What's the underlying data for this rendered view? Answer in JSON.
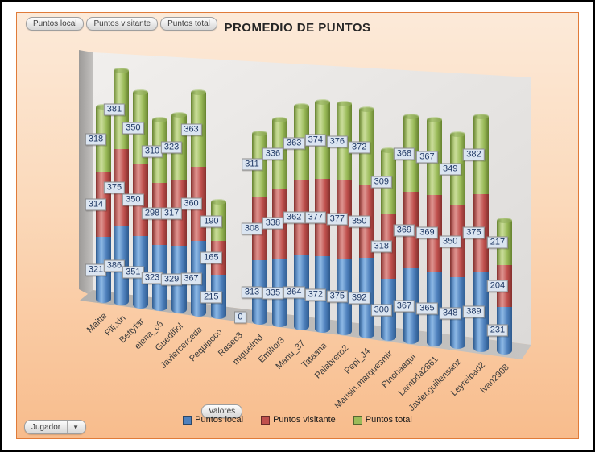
{
  "title": "PROMEDIO DE PUNTOS",
  "field_buttons": {
    "local": "Puntos local",
    "visitante": "Puntos visitante",
    "total": "Puntos total"
  },
  "values_button": "Valores",
  "category_button": {
    "label": "Jugador",
    "arrow": "▼"
  },
  "legend": {
    "items": [
      {
        "label": "Puntos local",
        "color": "#4f81bd"
      },
      {
        "label": "Puntos visitante",
        "color": "#c0504d"
      },
      {
        "label": "Puntos total",
        "color": "#9bbb59"
      }
    ]
  },
  "colors": {
    "panel_border": "#e07b39",
    "background_top": "#fcead9",
    "background_bottom": "#f8bc8c",
    "label_box": "#dbe5f1",
    "label_text": "#1f3864"
  },
  "chart_data": {
    "type": "bar",
    "subtype": "3d-stacked-cylinder",
    "title": "PROMEDIO DE PUNTOS",
    "categories": [
      "Maitte",
      "Fili.xin",
      "Bettyfar",
      "elena_c6",
      "Guedifiol",
      "Javiercerceda",
      "Pequipoco",
      "Rasec3",
      "miguelmd",
      "Emilíor3",
      "Manu_37",
      "Tataana",
      "Palabrero2",
      "Pepi_J4",
      "Marisin.marquesmir",
      "Pinchaaqui",
      "Lambda2861",
      "Javier.guillensanz",
      "Leyreipad2",
      "Ivan2908"
    ],
    "series": [
      {
        "name": "Puntos local",
        "color": "#4f81bd",
        "values": [
          321,
          386,
          351,
          323,
          329,
          367,
          215,
          0,
          313,
          335,
          364,
          372,
          375,
          392,
          300,
          367,
          365,
          348,
          389,
          231
        ]
      },
      {
        "name": "Puntos visitante",
        "color": "#c0504d",
        "values": [
          314,
          375,
          350,
          298,
          317,
          360,
          165,
          0,
          308,
          338,
          362,
          377,
          377,
          350,
          318,
          369,
          369,
          350,
          375,
          204
        ]
      },
      {
        "name": "Puntos total",
        "color": "#9bbb59",
        "values": [
          318,
          381,
          350,
          310,
          323,
          363,
          190,
          0,
          311,
          336,
          363,
          374,
          376,
          372,
          309,
          368,
          367,
          349,
          382,
          217
        ]
      }
    ],
    "data_labels": "shown for every segment",
    "legend_position": "bottom",
    "xlabel": "",
    "ylabel": ""
  }
}
